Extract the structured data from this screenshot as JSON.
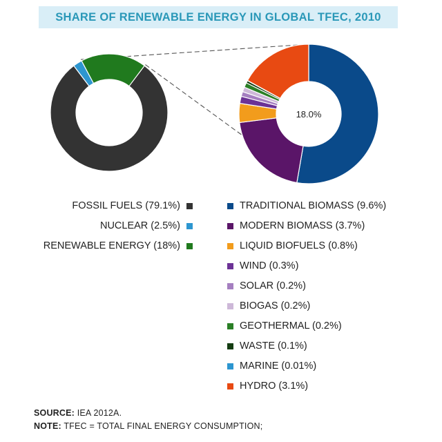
{
  "title": "SHARE OF RENEWABLE ENERGY IN GLOBAL TFEC, 2010",
  "chart_data": [
    {
      "type": "pie",
      "categories": [
        "FOSSIL FUELS (79.1%)",
        "NUCLEAR (2.5%)",
        "RENEWABLE ENERGY (18%)"
      ],
      "values": [
        79.1,
        2.5,
        18.0
      ],
      "colors": [
        "#333333",
        "#2d96d0",
        "#207a1e"
      ]
    },
    {
      "type": "pie",
      "center_label": "18.0%",
      "categories": [
        "TRADITIONAL BIOMASS (9.6%)",
        "MODERN BIOMASS (3.7%)",
        "LIQUID BIOFUELS (0.8%)",
        "WIND (0.3%)",
        "SOLAR (0.2%)",
        "BIOGAS (0.2%)",
        "GEOTHERMAL (0.2%)",
        "WASTE (0.1%)",
        "MARINE (0.01%)",
        "HYDRO (3.1%)"
      ],
      "values": [
        9.6,
        3.7,
        0.8,
        0.3,
        0.2,
        0.2,
        0.2,
        0.1,
        0.01,
        3.1
      ],
      "colors": [
        "#0a4a8a",
        "#5a1568",
        "#f29c1c",
        "#6c3296",
        "#a57fc0",
        "#cdb8d8",
        "#2a7f26",
        "#143d12",
        "#2d96d0",
        "#e84a12"
      ]
    }
  ],
  "footer": {
    "source_label": "SOURCE:",
    "source_text": " IEA 2012A.",
    "note_label": "NOTE:",
    "note_text": " TFEC = TOTAL FINAL ENERGY CONSUMPTION;"
  }
}
